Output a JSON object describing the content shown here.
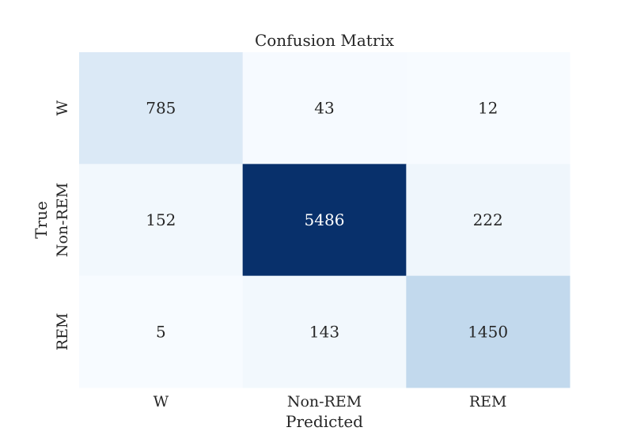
{
  "chart_data": {
    "type": "heatmap",
    "title": "Confusion Matrix",
    "xlabel": "Predicted",
    "ylabel": "True",
    "x_categories": [
      "W",
      "Non-REM",
      "REM"
    ],
    "y_categories": [
      "W",
      "Non-REM",
      "REM"
    ],
    "values": [
      [
        785,
        43,
        12
      ],
      [
        152,
        5486,
        222
      ],
      [
        5,
        143,
        1450
      ]
    ],
    "colormap": "Blues",
    "colorbar": false,
    "grid": false
  }
}
